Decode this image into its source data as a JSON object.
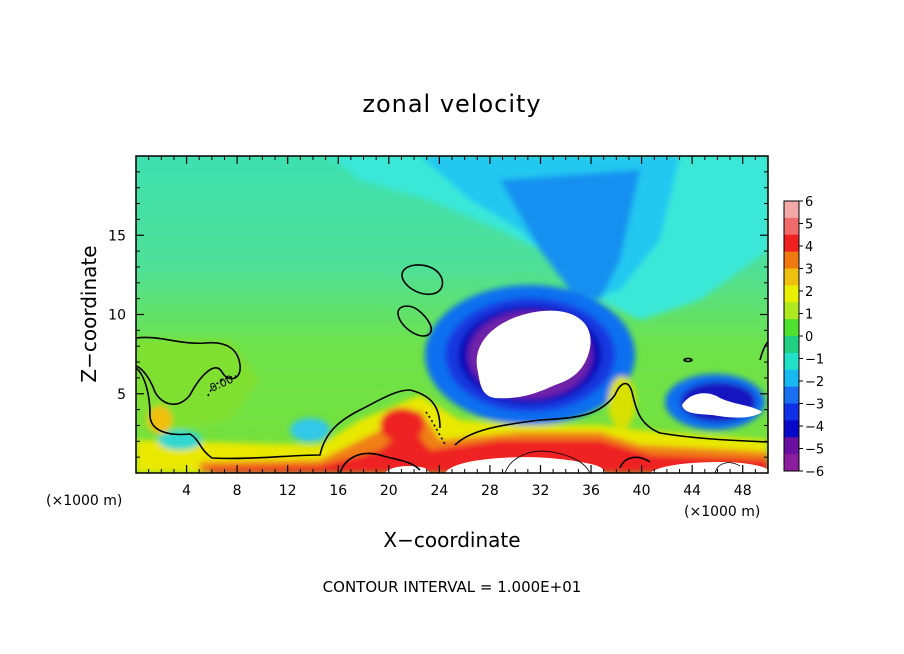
{
  "chart_data": {
    "type": "heatmap",
    "title": "zonal velocity",
    "xlabel": "X−coordinate",
    "ylabel": "Z−coordinate",
    "x_unit_label": "(×1000 m)",
    "x_unit_label_right": "(×1000 m)",
    "footer": "CONTOUR INTERVAL = 1.000E+01",
    "x_range": [
      0,
      50
    ],
    "y_range": [
      0,
      20
    ],
    "x_ticks": [
      "4",
      "8",
      "12",
      "16",
      "20",
      "24",
      "28",
      "32",
      "36",
      "40",
      "44",
      "48"
    ],
    "x_tick_values": [
      4,
      8,
      12,
      16,
      20,
      24,
      28,
      32,
      36,
      40,
      44,
      48
    ],
    "y_ticks": [
      "5",
      "10",
      "15"
    ],
    "y_tick_values": [
      5,
      10,
      15
    ],
    "colorbar": {
      "labels": [
        "6",
        "5",
        "4",
        "3",
        "2",
        "1",
        "0",
        "−1",
        "−2",
        "−3",
        "−4",
        "−5",
        "−6"
      ],
      "values": [
        6,
        5,
        4,
        3,
        2,
        1,
        0,
        -1,
        -2,
        -3,
        -4,
        -5,
        -6
      ],
      "colors": [
        "#f3a7a7",
        "#f06a6a",
        "#ee2020",
        "#f07a10",
        "#f0c010",
        "#e8f000",
        "#b0e820",
        "#50e030",
        "#20d080",
        "#20e0c8",
        "#18b8f0",
        "#1870f0",
        "#1030e8",
        "#0808c8",
        "#6a10a0",
        "#8a1e9e"
      ]
    },
    "contour_label": "0.00",
    "fields": {
      "background": "#6ee24a",
      "upper_background": "#5ee08a",
      "out_of_range": "#ffffff"
    }
  }
}
